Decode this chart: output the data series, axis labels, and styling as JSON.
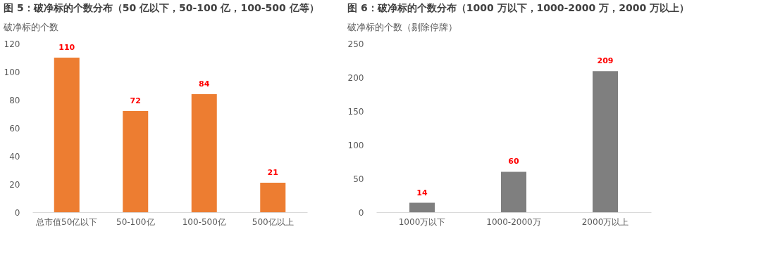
{
  "chart_data": [
    {
      "type": "bar",
      "title": "图 5：破净标的个数分布（50 亿以下，50-100 亿，100-500 亿等）",
      "subtitle": "破净标的个数",
      "categories": [
        "总市值50亿以下",
        "50-100亿",
        "100-500亿",
        "500亿以上"
      ],
      "values": [
        110,
        72,
        84,
        21
      ],
      "color": "#ed7d31",
      "ylim": [
        0,
        120
      ],
      "yticks": [
        0,
        20,
        40,
        60,
        80,
        100,
        120
      ],
      "grid": false,
      "data_labels": true
    },
    {
      "type": "bar",
      "title": "图 6：破净标的个数分布（1000 万以下，1000-2000 万，2000 万以上）",
      "subtitle": "破净标的个数（剔除停牌）",
      "categories": [
        "1000万以下",
        "1000-2000万",
        "2000万以上"
      ],
      "values": [
        14,
        60,
        209
      ],
      "color": "#7f7f7f",
      "ylim": [
        0,
        250
      ],
      "yticks": [
        0,
        50,
        100,
        150,
        200,
        250
      ],
      "grid": false,
      "data_labels": true
    }
  ]
}
